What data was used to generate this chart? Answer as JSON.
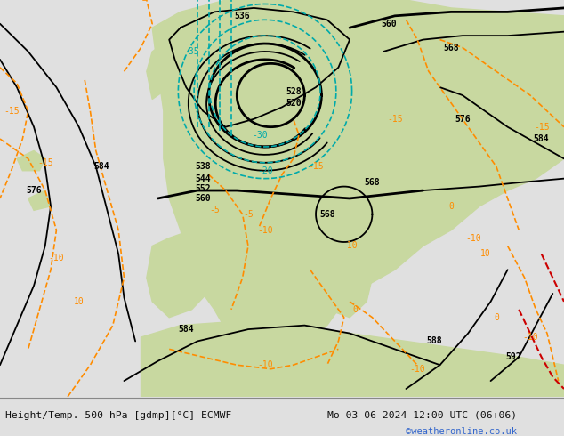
{
  "title_left": "Height/Temp. 500 hPa [gdmp][°C] ECMWF",
  "title_right": "Mo 03-06-2024 12:00 UTC (06+06)",
  "credit": "©weatheronline.co.uk",
  "bg_sea_color": "#c0c0c0",
  "bg_land_color": "#c8d8a0",
  "bottom_bar_color": "#e0e0e0",
  "z500_color": "#000000",
  "temp_cyan": "#00aaaa",
  "slp_orange": "#ff8c00",
  "slp_red": "#cc0000",
  "separator_color": "#888888"
}
